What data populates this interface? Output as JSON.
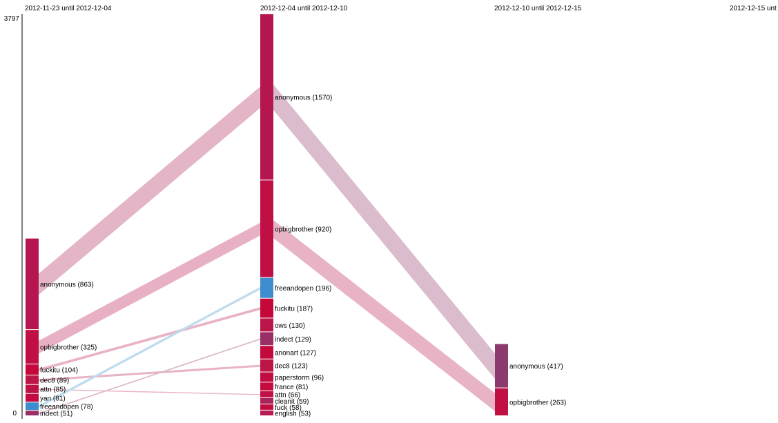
{
  "chart_data": {
    "type": "flow",
    "y_axis": {
      "max_label": "3797",
      "min_label": "0",
      "range": [
        0,
        3797
      ]
    },
    "periods": [
      "2012-11-23 until 2012-12-04",
      "2012-12-04 until 2012-12-10",
      "2012-12-10 until 2012-12-15",
      "2012-12-15 unt"
    ],
    "nodes": [
      [
        {
          "name": "anonymous",
          "value": 863,
          "label": "anonymous (863)",
          "color": "#b5164f"
        },
        {
          "name": "opbigbrother",
          "value": 325,
          "label": "opbigbrother (325)",
          "color": "#bf0f45"
        },
        {
          "name": "fuckitu",
          "value": 104,
          "label": "fuckitu (104)",
          "color": "#c4083a"
        },
        {
          "name": "dec8",
          "value": 89,
          "label": "dec8 (89)",
          "color": "#bc1648"
        },
        {
          "name": "attn",
          "value": 85,
          "label": "attn (85)",
          "color": "#bd1246"
        },
        {
          "name": "yan",
          "value": 81,
          "label": "yan (81)",
          "color": "#c30b3e"
        },
        {
          "name": "freeandopen",
          "value": 78,
          "label": "freeandopen (78)",
          "color": "#3e8ecf"
        },
        {
          "name": "indect",
          "value": 51,
          "label": "indect (51)",
          "color": "#9b2e66"
        }
      ],
      [
        {
          "name": "anonymous",
          "value": 1570,
          "label": "anonymous (1570)",
          "color": "#b5164f"
        },
        {
          "name": "opbigbrother",
          "value": 920,
          "label": "opbigbrother (920)",
          "color": "#bf0f45"
        },
        {
          "name": "freeandopen",
          "value": 196,
          "label": "freeandopen (196)",
          "color": "#3e8ecf"
        },
        {
          "name": "fuckitu",
          "value": 187,
          "label": "fuckitu (187)",
          "color": "#c4083a"
        },
        {
          "name": "ows",
          "value": 130,
          "label": "ows (130)",
          "color": "#bb1649"
        },
        {
          "name": "indect",
          "value": 129,
          "label": "indect (129)",
          "color": "#9b2e66"
        },
        {
          "name": "anonart",
          "value": 127,
          "label": "anonart (127)",
          "color": "#c40a3c"
        },
        {
          "name": "dec8",
          "value": 123,
          "label": "dec8 (123)",
          "color": "#bc1648"
        },
        {
          "name": "paperstorm",
          "value": 96,
          "label": "paperstorm (96)",
          "color": "#c10d42"
        },
        {
          "name": "france",
          "value": 81,
          "label": "france (81)",
          "color": "#c30b3e"
        },
        {
          "name": "attn",
          "value": 66,
          "label": "attn (66)",
          "color": "#bd1246"
        },
        {
          "name": "cleanit",
          "value": 59,
          "label": "cleanit (59)",
          "color": "#a8235a"
        },
        {
          "name": "fuck",
          "value": 58,
          "label": "fuck (58)",
          "color": "#c20c40"
        },
        {
          "name": "english",
          "value": 53,
          "label": "english (53)",
          "color": "#b51a50"
        }
      ],
      [
        {
          "name": "anonymous",
          "value": 417,
          "label": "anonymous (417)",
          "color": "#8c3a6e"
        },
        {
          "name": "opbigbrother",
          "value": 263,
          "label": "opbigbrother (263)",
          "color": "#bf0f45"
        }
      ],
      []
    ],
    "links": [
      {
        "from_period": 0,
        "from": "anonymous",
        "to_period": 1,
        "to": "anonymous",
        "value": 200,
        "color": "#e3b5c6"
      },
      {
        "from_period": 0,
        "from": "opbigbrother",
        "to_period": 1,
        "to": "opbigbrother",
        "value": 120,
        "color": "#e8b0c4"
      },
      {
        "from_period": 0,
        "from": "fuckitu",
        "to_period": 1,
        "to": "fuckitu",
        "value": 25,
        "color": "#eab3c5"
      },
      {
        "from_period": 0,
        "from": "dec8",
        "to_period": 1,
        "to": "dec8",
        "value": 20,
        "color": "#e8b4c4"
      },
      {
        "from_period": 0,
        "from": "attn",
        "to_period": 1,
        "to": "attn",
        "value": 10,
        "color": "#eab8c8"
      },
      {
        "from_period": 0,
        "from": "freeandopen",
        "to_period": 1,
        "to": "freeandopen",
        "value": 25,
        "color": "#bfdcef"
      },
      {
        "from_period": 0,
        "from": "indect",
        "to_period": 1,
        "to": "indect",
        "value": 12,
        "color": "#dbb8c9"
      },
      {
        "from_period": 1,
        "from": "anonymous",
        "to_period": 2,
        "to": "anonymous",
        "value": 240,
        "color": "#dbbccd"
      },
      {
        "from_period": 1,
        "from": "opbigbrother",
        "to_period": 2,
        "to": "opbigbrother",
        "value": 170,
        "color": "#e8b3c5"
      }
    ]
  }
}
